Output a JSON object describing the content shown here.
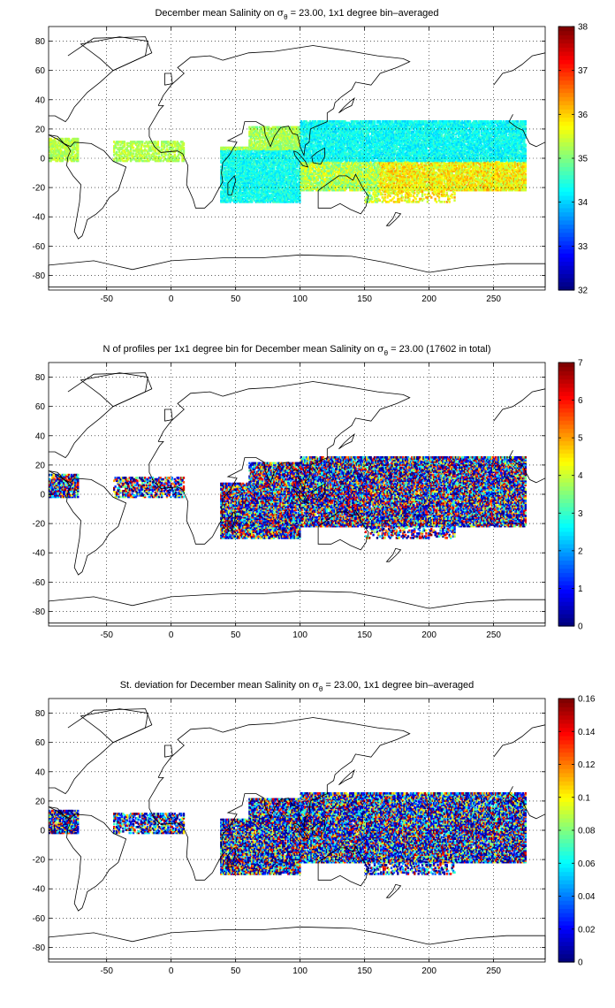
{
  "chart_data": [
    {
      "type": "heatmap",
      "title_parts": [
        "December mean Salinity on ",
        "σ",
        "θ",
        " = 23.00, 1x1 degree bin–averaged"
      ],
      "xlim": [
        -95,
        290
      ],
      "ylim": [
        -90,
        90
      ],
      "x_ticks": [
        "-50",
        "0",
        "50",
        "100",
        "150",
        "200",
        "250"
      ],
      "y_ticks": [
        "80",
        "60",
        "40",
        "20",
        "0",
        "-20",
        "-40",
        "-60",
        "-80"
      ],
      "colorbar": {
        "min": 32,
        "max": 38,
        "ticks": [
          "32",
          "33",
          "34",
          "35",
          "36",
          "37",
          "38"
        ]
      },
      "grid": true
    },
    {
      "type": "heatmap",
      "title_parts": [
        "N of profiles per 1x1 degree bin for December mean Salinity on ",
        "σ",
        "θ",
        " = 23.00 (17602 in total)"
      ],
      "xlim": [
        -95,
        290
      ],
      "ylim": [
        -90,
        90
      ],
      "x_ticks": [
        "-50",
        "0",
        "50",
        "100",
        "150",
        "200",
        "250"
      ],
      "y_ticks": [
        "80",
        "60",
        "40",
        "20",
        "0",
        "-20",
        "-40",
        "-60",
        "-80"
      ],
      "colorbar": {
        "min": 0,
        "max": 7,
        "ticks": [
          "0",
          "1",
          "2",
          "3",
          "4",
          "5",
          "6",
          "7"
        ]
      },
      "grid": true
    },
    {
      "type": "heatmap",
      "title_parts": [
        "St. deviation for December mean Salinity on ",
        "σ",
        "θ",
        " = 23.00, 1x1 degree bin–averaged"
      ],
      "xlim": [
        -95,
        290
      ],
      "ylim": [
        -90,
        90
      ],
      "x_ticks": [
        "-50",
        "0",
        "50",
        "100",
        "150",
        "200",
        "250"
      ],
      "y_ticks": [
        "80",
        "60",
        "40",
        "20",
        "0",
        "-20",
        "-40",
        "-60",
        "-80"
      ],
      "colorbar": {
        "min": 0,
        "max": 0.16,
        "ticks": [
          "0",
          "0.02",
          "0.04",
          "0.06",
          "0.08",
          "0.1",
          "0.12",
          "0.14",
          "0.16"
        ]
      },
      "grid": true
    }
  ]
}
